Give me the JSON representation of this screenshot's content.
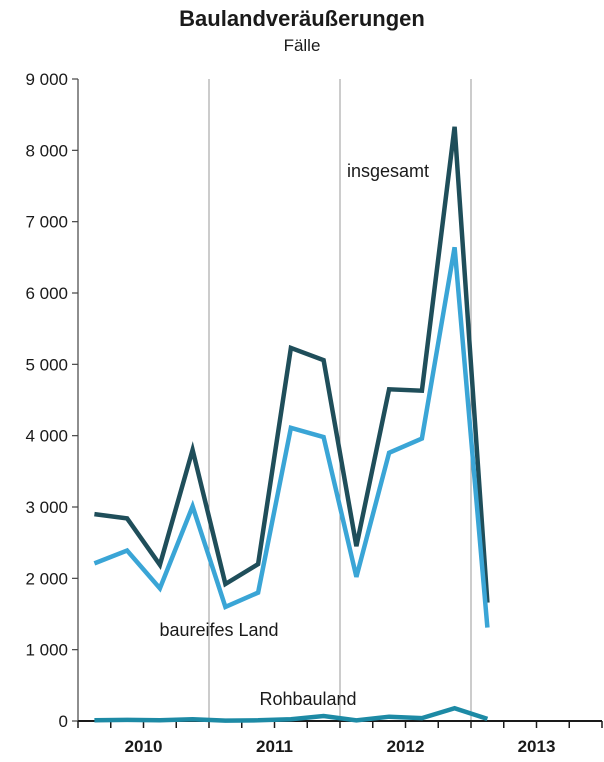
{
  "chart_data": {
    "type": "line",
    "title": "Baulandveräußerungen",
    "subtitle": "Fälle",
    "ylim": [
      0,
      9000
    ],
    "y_ticks": [
      0,
      1000,
      2000,
      3000,
      4000,
      5000,
      6000,
      7000,
      8000,
      9000
    ],
    "y_tick_labels": [
      "0",
      "1 000",
      "2 000",
      "3 000",
      "4 000",
      "5 000",
      "6 000",
      "7 000",
      "8 000",
      "9 000"
    ],
    "year_labels": [
      "2010",
      "2011",
      "2012",
      "2013"
    ],
    "x": [
      "2010 Q1",
      "2010 Q2",
      "2010 Q3",
      "2010 Q4",
      "2011 Q1",
      "2011 Q2",
      "2011 Q3",
      "2011 Q4",
      "2012 Q1",
      "2012 Q2",
      "2012 Q3",
      "2012 Q4",
      "2013 Q1",
      "2013 Q2",
      "2013 Q3",
      "2013 Q4"
    ],
    "grid": "vertical",
    "series": [
      {
        "name": "insgesamt",
        "color": "#1f4e5a",
        "values": [
          2900,
          2840,
          2190,
          3800,
          1920,
          2200,
          5230,
          5060,
          2450,
          4650,
          4630,
          8330,
          1660,
          null,
          null,
          null
        ]
      },
      {
        "name": "baureifes Land",
        "color": "#3aa5d6",
        "values": [
          2210,
          2390,
          1860,
          3010,
          1600,
          1800,
          4110,
          3980,
          2020,
          3760,
          3960,
          6640,
          1310,
          null,
          null,
          null
        ]
      },
      {
        "name": "Rohbauland",
        "color": "#1d8aa5",
        "values": [
          10,
          15,
          10,
          25,
          5,
          10,
          25,
          70,
          10,
          60,
          40,
          180,
          30,
          null,
          null,
          null
        ]
      }
    ]
  }
}
